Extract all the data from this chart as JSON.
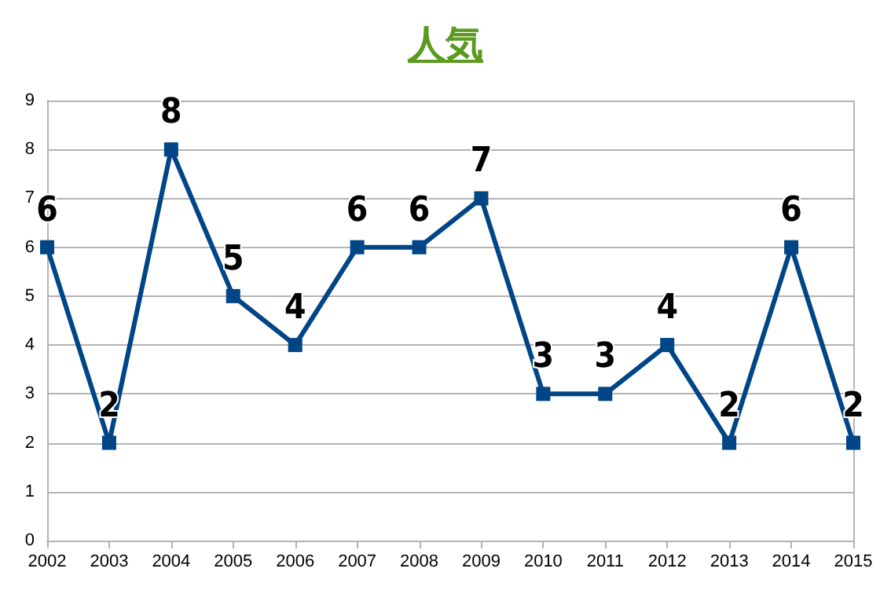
{
  "chart_data": {
    "type": "line",
    "title": "人気",
    "categories": [
      "2002",
      "2003",
      "2004",
      "2005",
      "2006",
      "2007",
      "2008",
      "2009",
      "2010",
      "2011",
      "2012",
      "2013",
      "2014",
      "2015"
    ],
    "series": [
      {
        "color": "#004586",
        "values": [
          6,
          2,
          8,
          5,
          4,
          6,
          6,
          7,
          3,
          3,
          4,
          2,
          6,
          2
        ]
      }
    ],
    "ylim": [
      0,
      9
    ],
    "yticks": [
      0,
      1,
      2,
      3,
      4,
      5,
      6,
      7,
      8,
      9
    ],
    "grid": "y",
    "marker": "square",
    "line_style": "solid",
    "data_labels": true
  }
}
